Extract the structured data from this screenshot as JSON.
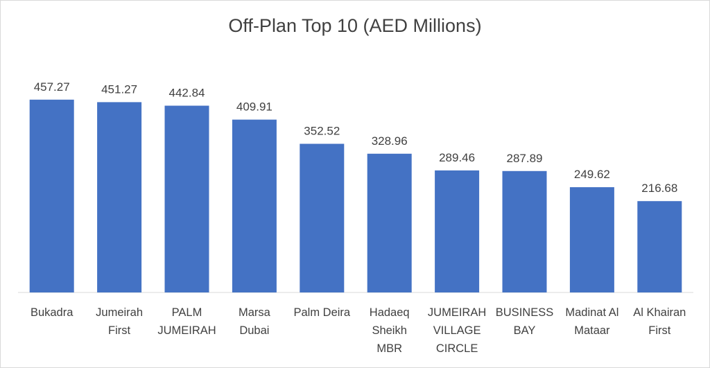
{
  "chart_data": {
    "type": "bar",
    "title": "Off-Plan Top 10 (AED Millions)",
    "categories": [
      "Bukadra",
      "Jumeirah First",
      "PALM JUMEIRAH",
      "Marsa Dubai",
      "Palm Deira",
      "Hadaeq Sheikh MBR",
      "JUMEIRAH VILLAGE CIRCLE",
      "BUSINESS BAY",
      "Madinat Al Mataar",
      "Al Khairan First"
    ],
    "category_lines": [
      [
        "Bukadra"
      ],
      [
        "Jumeirah",
        "First"
      ],
      [
        "PALM",
        "JUMEIRAH"
      ],
      [
        "Marsa",
        "Dubai"
      ],
      [
        "Palm Deira"
      ],
      [
        "Hadaeq",
        "Sheikh",
        "MBR"
      ],
      [
        "JUMEIRAH",
        "VILLAGE",
        "CIRCLE"
      ],
      [
        "BUSINESS",
        "BAY"
      ],
      [
        "Madinat Al",
        "Mataar"
      ],
      [
        "Al Khairan",
        "First"
      ]
    ],
    "values": [
      457.27,
      451.27,
      442.84,
      409.91,
      352.52,
      328.96,
      289.46,
      287.89,
      249.62,
      216.68
    ],
    "data_labels": [
      "457.27",
      "451.27",
      "442.84",
      "409.91",
      "352.52",
      "328.96",
      "289.46",
      "287.89",
      "249.62",
      "216.68"
    ],
    "ylim": [
      0,
      500
    ],
    "bar_color": "#4472c4",
    "grid": false,
    "legend": "none"
  }
}
